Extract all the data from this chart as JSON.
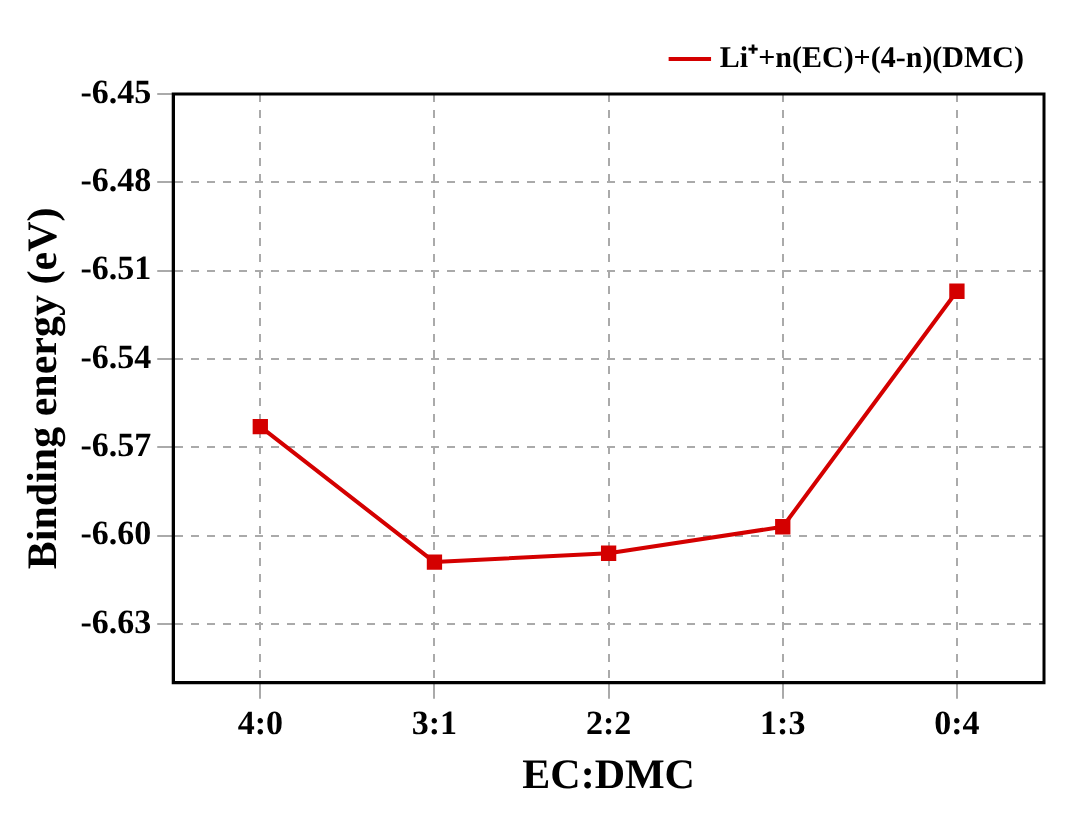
{
  "chart_data": {
    "type": "line",
    "xlabel": "EC:DMC",
    "ylabel": "Binding energy (eV)",
    "categories": [
      "4:0",
      "3:1",
      "2:2",
      "1:3",
      "0:4"
    ],
    "series": [
      {
        "name": "Li⁺+n(EC)+(4-n)(DMC)",
        "color": "#d40000",
        "values": [
          -6.563,
          -6.609,
          -6.606,
          -6.597,
          -6.517
        ]
      }
    ],
    "ylim": [
      -6.65,
      -6.45
    ],
    "yticks": [
      -6.45,
      -6.48,
      -6.51,
      -6.54,
      -6.57,
      {
        "value": -6.6,
        "label": "-6.60"
      },
      -6.63
    ],
    "grid": true,
    "legend": "top right",
    "marker": "square",
    "line_style": "solid"
  }
}
